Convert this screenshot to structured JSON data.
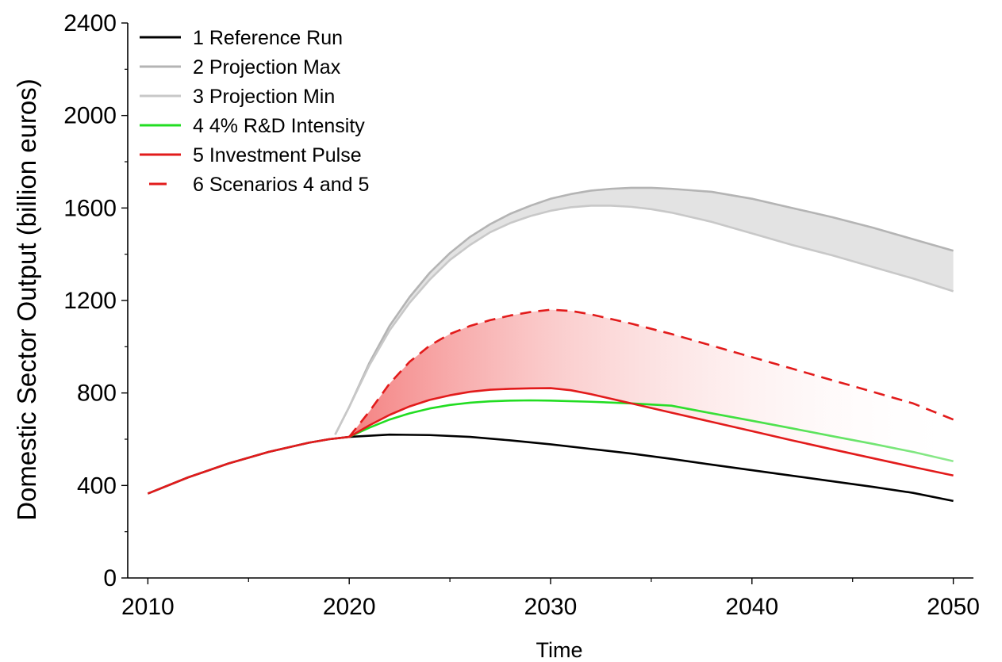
{
  "chart_data": {
    "type": "line",
    "title": "",
    "xlabel": "Time",
    "ylabel": "Domestic Sector Output (billion euros)",
    "xlim": [
      2009,
      2051
    ],
    "ylim": [
      0,
      2400
    ],
    "xticks": [
      2010,
      2020,
      2030,
      2040,
      2050
    ],
    "yticks": [
      0,
      400,
      800,
      1200,
      1600,
      2000,
      2400
    ],
    "grid": false,
    "legend_position": "top-left",
    "shaded_regions": [
      {
        "between": [
          "3 Projection Min",
          "2 Projection Max"
        ],
        "color": "#cccccc",
        "gradient": "none"
      },
      {
        "between": [
          "5 Investment Pulse",
          "6 Scenarios 4 and 5"
        ],
        "color": "#f08080",
        "gradient": "fades to white toward 2050"
      }
    ],
    "series": [
      {
        "name": "1 Reference Run",
        "color": "#000000",
        "dash": "solid",
        "x": [
          2010,
          2012,
          2014,
          2016,
          2018,
          2019,
          2020,
          2022,
          2024,
          2026,
          2028,
          2030,
          2032,
          2034,
          2036,
          2038,
          2040,
          2042,
          2044,
          2046,
          2048,
          2050
        ],
        "y": [
          365,
          435,
          495,
          545,
          585,
          600,
          610,
          620,
          618,
          610,
          595,
          578,
          558,
          538,
          515,
          490,
          466,
          442,
          418,
          394,
          368,
          333
        ]
      },
      {
        "name": "2 Projection Max",
        "color": "#b4b4b4",
        "dash": "solid",
        "x": [
          2019.3,
          2020,
          2021,
          2022,
          2023,
          2024,
          2025,
          2026,
          2027,
          2028,
          2029,
          2030,
          2031,
          2032,
          2033,
          2034,
          2035,
          2036,
          2038,
          2040,
          2042,
          2044,
          2046,
          2048,
          2050
        ],
        "y": [
          620,
          740,
          930,
          1090,
          1215,
          1320,
          1405,
          1475,
          1530,
          1575,
          1610,
          1640,
          1660,
          1675,
          1683,
          1687,
          1687,
          1683,
          1670,
          1640,
          1600,
          1560,
          1515,
          1465,
          1415
        ]
      },
      {
        "name": "3 Projection Min",
        "color": "#c8c8c8",
        "dash": "solid",
        "x": [
          2019.3,
          2020,
          2021,
          2022,
          2023,
          2024,
          2025,
          2026,
          2027,
          2028,
          2029,
          2030,
          2031,
          2032,
          2033,
          2034,
          2035,
          2036,
          2038,
          2040,
          2042,
          2044,
          2046,
          2048,
          2050
        ],
        "y": [
          620,
          740,
          920,
          1070,
          1190,
          1290,
          1375,
          1440,
          1495,
          1535,
          1565,
          1588,
          1603,
          1610,
          1610,
          1605,
          1595,
          1580,
          1540,
          1490,
          1440,
          1395,
          1345,
          1295,
          1240
        ]
      },
      {
        "name": "4 4% R&D Intensity",
        "color": "#22dd22",
        "dash": "solid",
        "x": [
          2020,
          2021,
          2022,
          2023,
          2024,
          2025,
          2026,
          2027,
          2028,
          2029,
          2030,
          2032,
          2034,
          2036,
          2038,
          2040,
          2042,
          2044,
          2046,
          2048,
          2050
        ],
        "y": [
          610,
          650,
          685,
          712,
          733,
          748,
          758,
          764,
          767,
          768,
          767,
          762,
          755,
          745,
          712,
          680,
          647,
          613,
          580,
          545,
          505
        ]
      },
      {
        "name": "5 Investment Pulse",
        "color": "#e21b1b",
        "dash": "solid",
        "x": [
          2010,
          2012,
          2014,
          2016,
          2018,
          2019,
          2020,
          2021,
          2022,
          2023,
          2024,
          2025,
          2026,
          2027,
          2028,
          2029,
          2030,
          2031,
          2032,
          2034,
          2036,
          2038,
          2040,
          2042,
          2044,
          2046,
          2048,
          2050
        ],
        "y": [
          365,
          435,
          495,
          545,
          585,
          600,
          610,
          660,
          705,
          742,
          770,
          790,
          805,
          814,
          818,
          820,
          821,
          812,
          795,
          755,
          715,
          675,
          635,
          595,
          556,
          518,
          480,
          443
        ]
      },
      {
        "name": "6 Scenarios 4 and 5",
        "color": "#e21b1b",
        "dash": "dashed",
        "x": [
          2020,
          2021,
          2022,
          2023,
          2024,
          2025,
          2026,
          2027,
          2028,
          2029,
          2030,
          2031,
          2032,
          2034,
          2036,
          2038,
          2040,
          2042,
          2044,
          2046,
          2048,
          2050
        ],
        "y": [
          610,
          720,
          840,
          935,
          1005,
          1055,
          1090,
          1115,
          1135,
          1150,
          1160,
          1155,
          1140,
          1100,
          1055,
          1005,
          955,
          905,
          855,
          805,
          755,
          685
        ]
      }
    ]
  }
}
